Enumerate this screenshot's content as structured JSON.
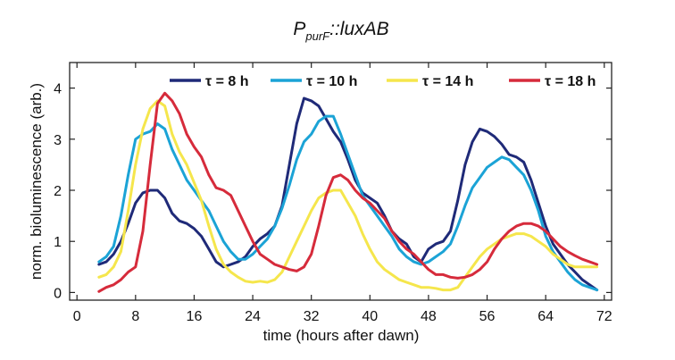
{
  "chart_data": {
    "type": "line",
    "title": "P",
    "title_subscript": "purF",
    "title_suffix": "::luxAB",
    "xlabel": "time (hours after dawn)",
    "ylabel": "norm. bioluminescence (arb.)",
    "xlim": [
      -1,
      73
    ],
    "ylim": [
      -0.15,
      4.5
    ],
    "xticks": [
      0,
      8,
      16,
      24,
      32,
      40,
      48,
      56,
      64,
      72
    ],
    "yticks": [
      0,
      1,
      2,
      3,
      4
    ],
    "grid": false,
    "legend_position": "top",
    "series": [
      {
        "name": "τ = 8 h",
        "color": "#1f2a78",
        "points": [
          [
            3,
            0.55
          ],
          [
            4,
            0.6
          ],
          [
            5,
            0.75
          ],
          [
            6,
            1.0
          ],
          [
            7,
            1.35
          ],
          [
            8,
            1.75
          ],
          [
            9,
            1.95
          ],
          [
            10,
            2.0
          ],
          [
            11,
            2.0
          ],
          [
            12,
            1.85
          ],
          [
            13,
            1.55
          ],
          [
            14,
            1.4
          ],
          [
            15,
            1.35
          ],
          [
            16,
            1.25
          ],
          [
            17,
            1.1
          ],
          [
            18,
            0.85
          ],
          [
            19,
            0.6
          ],
          [
            20,
            0.5
          ],
          [
            21,
            0.55
          ],
          [
            22,
            0.6
          ],
          [
            23,
            0.7
          ],
          [
            24,
            0.9
          ],
          [
            25,
            1.05
          ],
          [
            26,
            1.15
          ],
          [
            27,
            1.3
          ],
          [
            28,
            1.7
          ],
          [
            29,
            2.5
          ],
          [
            30,
            3.3
          ],
          [
            31,
            3.8
          ],
          [
            32,
            3.75
          ],
          [
            33,
            3.65
          ],
          [
            34,
            3.4
          ],
          [
            35,
            3.15
          ],
          [
            36,
            2.95
          ],
          [
            37,
            2.6
          ],
          [
            38,
            2.2
          ],
          [
            39,
            1.95
          ],
          [
            40,
            1.85
          ],
          [
            41,
            1.75
          ],
          [
            42,
            1.5
          ],
          [
            43,
            1.2
          ],
          [
            44,
            1.05
          ],
          [
            45,
            0.95
          ],
          [
            46,
            0.7
          ],
          [
            47,
            0.6
          ],
          [
            48,
            0.85
          ],
          [
            49,
            0.95
          ],
          [
            50,
            1.0
          ],
          [
            51,
            1.2
          ],
          [
            52,
            1.8
          ],
          [
            53,
            2.5
          ],
          [
            54,
            2.95
          ],
          [
            55,
            3.2
          ],
          [
            56,
            3.15
          ],
          [
            57,
            3.05
          ],
          [
            58,
            2.9
          ],
          [
            59,
            2.7
          ],
          [
            60,
            2.65
          ],
          [
            61,
            2.55
          ],
          [
            62,
            2.2
          ],
          [
            63,
            1.75
          ],
          [
            64,
            1.3
          ],
          [
            65,
            0.95
          ],
          [
            66,
            0.75
          ],
          [
            67,
            0.55
          ],
          [
            68,
            0.4
          ],
          [
            69,
            0.25
          ],
          [
            70,
            0.15
          ],
          [
            71,
            0.05
          ]
        ]
      },
      {
        "name": "τ = 10 h",
        "color": "#1ba3d6",
        "points": [
          [
            3,
            0.6
          ],
          [
            4,
            0.7
          ],
          [
            5,
            0.9
          ],
          [
            6,
            1.5
          ],
          [
            7,
            2.3
          ],
          [
            8,
            3.0
          ],
          [
            9,
            3.1
          ],
          [
            10,
            3.15
          ],
          [
            11,
            3.3
          ],
          [
            12,
            3.2
          ],
          [
            13,
            2.8
          ],
          [
            14,
            2.5
          ],
          [
            15,
            2.2
          ],
          [
            16,
            2.0
          ],
          [
            17,
            1.8
          ],
          [
            18,
            1.6
          ],
          [
            19,
            1.3
          ],
          [
            20,
            1.0
          ],
          [
            21,
            0.8
          ],
          [
            22,
            0.65
          ],
          [
            23,
            0.65
          ],
          [
            24,
            0.75
          ],
          [
            25,
            0.9
          ],
          [
            26,
            1.05
          ],
          [
            27,
            1.3
          ],
          [
            28,
            1.65
          ],
          [
            29,
            2.1
          ],
          [
            30,
            2.6
          ],
          [
            31,
            2.95
          ],
          [
            32,
            3.1
          ],
          [
            33,
            3.35
          ],
          [
            34,
            3.45
          ],
          [
            35,
            3.45
          ],
          [
            36,
            3.1
          ],
          [
            37,
            2.7
          ],
          [
            38,
            2.3
          ],
          [
            39,
            1.9
          ],
          [
            40,
            1.7
          ],
          [
            41,
            1.5
          ],
          [
            42,
            1.3
          ],
          [
            43,
            1.1
          ],
          [
            44,
            0.85
          ],
          [
            45,
            0.7
          ],
          [
            46,
            0.6
          ],
          [
            47,
            0.55
          ],
          [
            48,
            0.6
          ],
          [
            49,
            0.7
          ],
          [
            50,
            0.8
          ],
          [
            51,
            0.95
          ],
          [
            52,
            1.3
          ],
          [
            53,
            1.7
          ],
          [
            54,
            2.05
          ],
          [
            55,
            2.25
          ],
          [
            56,
            2.45
          ],
          [
            57,
            2.55
          ],
          [
            58,
            2.65
          ],
          [
            59,
            2.6
          ],
          [
            60,
            2.45
          ],
          [
            61,
            2.3
          ],
          [
            62,
            2.0
          ],
          [
            63,
            1.6
          ],
          [
            64,
            1.1
          ],
          [
            65,
            0.8
          ],
          [
            66,
            0.6
          ],
          [
            67,
            0.4
          ],
          [
            68,
            0.25
          ],
          [
            69,
            0.15
          ],
          [
            70,
            0.1
          ],
          [
            71,
            0.05
          ]
        ]
      },
      {
        "name": "τ = 14 h",
        "color": "#f5e64c",
        "points": [
          [
            3,
            0.3
          ],
          [
            4,
            0.35
          ],
          [
            5,
            0.5
          ],
          [
            6,
            0.8
          ],
          [
            7,
            1.6
          ],
          [
            8,
            2.5
          ],
          [
            9,
            3.2
          ],
          [
            10,
            3.6
          ],
          [
            11,
            3.75
          ],
          [
            12,
            3.65
          ],
          [
            13,
            3.1
          ],
          [
            14,
            2.75
          ],
          [
            15,
            2.5
          ],
          [
            16,
            2.15
          ],
          [
            17,
            1.8
          ],
          [
            18,
            1.3
          ],
          [
            19,
            0.85
          ],
          [
            20,
            0.55
          ],
          [
            21,
            0.4
          ],
          [
            22,
            0.3
          ],
          [
            23,
            0.22
          ],
          [
            24,
            0.2
          ],
          [
            25,
            0.22
          ],
          [
            26,
            0.2
          ],
          [
            27,
            0.25
          ],
          [
            28,
            0.4
          ],
          [
            29,
            0.7
          ],
          [
            30,
            1.0
          ],
          [
            31,
            1.3
          ],
          [
            32,
            1.6
          ],
          [
            33,
            1.85
          ],
          [
            34,
            1.95
          ],
          [
            35,
            2.0
          ],
          [
            36,
            2.0
          ],
          [
            37,
            1.75
          ],
          [
            38,
            1.5
          ],
          [
            39,
            1.15
          ],
          [
            40,
            0.85
          ],
          [
            41,
            0.6
          ],
          [
            42,
            0.45
          ],
          [
            43,
            0.35
          ],
          [
            44,
            0.25
          ],
          [
            45,
            0.2
          ],
          [
            46,
            0.15
          ],
          [
            47,
            0.1
          ],
          [
            48,
            0.1
          ],
          [
            49,
            0.08
          ],
          [
            50,
            0.05
          ],
          [
            51,
            0.05
          ],
          [
            52,
            0.1
          ],
          [
            53,
            0.3
          ],
          [
            54,
            0.5
          ],
          [
            55,
            0.7
          ],
          [
            56,
            0.85
          ],
          [
            57,
            0.95
          ],
          [
            58,
            1.05
          ],
          [
            59,
            1.1
          ],
          [
            60,
            1.15
          ],
          [
            61,
            1.15
          ],
          [
            62,
            1.1
          ],
          [
            63,
            1.0
          ],
          [
            64,
            0.9
          ],
          [
            65,
            0.75
          ],
          [
            66,
            0.65
          ],
          [
            67,
            0.55
          ],
          [
            68,
            0.5
          ],
          [
            69,
            0.5
          ],
          [
            70,
            0.5
          ],
          [
            71,
            0.5
          ]
        ]
      },
      {
        "name": "τ = 18 h",
        "color": "#d62b3b",
        "points": [
          [
            3,
            0.02
          ],
          [
            4,
            0.1
          ],
          [
            5,
            0.15
          ],
          [
            6,
            0.25
          ],
          [
            7,
            0.4
          ],
          [
            8,
            0.5
          ],
          [
            9,
            1.2
          ],
          [
            10,
            2.5
          ],
          [
            11,
            3.7
          ],
          [
            12,
            3.9
          ],
          [
            13,
            3.75
          ],
          [
            14,
            3.5
          ],
          [
            15,
            3.1
          ],
          [
            16,
            2.85
          ],
          [
            17,
            2.65
          ],
          [
            18,
            2.3
          ],
          [
            19,
            2.05
          ],
          [
            20,
            2.0
          ],
          [
            21,
            1.9
          ],
          [
            22,
            1.6
          ],
          [
            23,
            1.3
          ],
          [
            24,
            1.0
          ],
          [
            25,
            0.75
          ],
          [
            26,
            0.65
          ],
          [
            27,
            0.55
          ],
          [
            28,
            0.5
          ],
          [
            29,
            0.45
          ],
          [
            30,
            0.42
          ],
          [
            31,
            0.5
          ],
          [
            32,
            0.75
          ],
          [
            33,
            1.3
          ],
          [
            34,
            1.9
          ],
          [
            35,
            2.25
          ],
          [
            36,
            2.3
          ],
          [
            37,
            2.2
          ],
          [
            38,
            2.0
          ],
          [
            39,
            1.85
          ],
          [
            40,
            1.75
          ],
          [
            41,
            1.6
          ],
          [
            42,
            1.45
          ],
          [
            43,
            1.2
          ],
          [
            44,
            1.0
          ],
          [
            45,
            0.85
          ],
          [
            46,
            0.75
          ],
          [
            47,
            0.6
          ],
          [
            48,
            0.45
          ],
          [
            49,
            0.35
          ],
          [
            50,
            0.35
          ],
          [
            51,
            0.3
          ],
          [
            52,
            0.28
          ],
          [
            53,
            0.3
          ],
          [
            54,
            0.35
          ],
          [
            55,
            0.45
          ],
          [
            56,
            0.6
          ],
          [
            57,
            0.85
          ],
          [
            58,
            1.05
          ],
          [
            59,
            1.2
          ],
          [
            60,
            1.3
          ],
          [
            61,
            1.35
          ],
          [
            62,
            1.35
          ],
          [
            63,
            1.3
          ],
          [
            64,
            1.2
          ],
          [
            65,
            1.05
          ],
          [
            66,
            0.9
          ],
          [
            67,
            0.8
          ],
          [
            68,
            0.72
          ],
          [
            69,
            0.65
          ],
          [
            70,
            0.6
          ],
          [
            71,
            0.55
          ]
        ]
      }
    ]
  }
}
